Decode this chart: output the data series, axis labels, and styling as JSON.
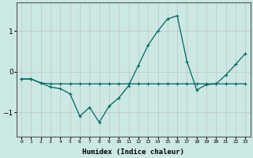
{
  "xlabel": "Humidex (Indice chaleur)",
  "background_color": "#cce8e4",
  "grid_color": "#bbbbbb",
  "line_color": "#006660",
  "x_ticks": [
    0,
    1,
    2,
    3,
    4,
    5,
    6,
    7,
    8,
    9,
    10,
    11,
    12,
    13,
    14,
    15,
    16,
    17,
    18,
    19,
    20,
    21,
    22,
    23
  ],
  "ylim": [
    -1.6,
    1.7
  ],
  "xlim": [
    -0.5,
    23.5
  ],
  "line_flat_x": [
    0,
    1,
    2,
    3,
    4,
    5,
    6,
    7,
    8,
    9,
    10,
    11,
    12,
    13,
    14,
    15,
    16,
    17,
    18,
    19,
    20,
    21,
    22,
    23
  ],
  "line_flat_y": [
    -0.18,
    -0.18,
    -0.28,
    -0.3,
    -0.3,
    -0.3,
    -0.3,
    -0.3,
    -0.3,
    -0.3,
    -0.3,
    -0.3,
    -0.3,
    -0.3,
    -0.3,
    -0.3,
    -0.3,
    -0.3,
    -0.3,
    -0.3,
    -0.3,
    -0.3,
    -0.3,
    -0.3
  ],
  "line_curve_x": [
    0,
    1,
    2,
    3,
    4,
    5,
    6,
    7,
    8,
    9,
    10,
    11,
    12,
    13,
    14,
    15,
    16,
    17,
    18,
    19,
    20,
    21,
    22,
    23
  ],
  "line_curve_y": [
    -0.18,
    -0.18,
    -0.28,
    -0.38,
    -0.42,
    -0.55,
    -1.1,
    -0.88,
    -1.25,
    -0.85,
    -0.65,
    -0.35,
    0.15,
    0.65,
    1.0,
    1.3,
    1.38,
    0.25,
    -0.45,
    -0.32,
    -0.3,
    -0.08,
    0.18,
    0.45
  ]
}
